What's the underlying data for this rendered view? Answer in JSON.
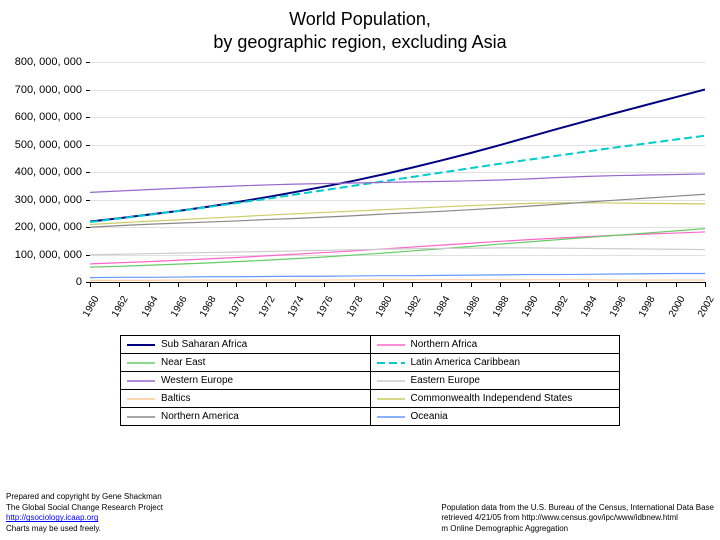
{
  "title_line1": "World Population,",
  "title_line2": "by geographic region, excluding Asia",
  "chart": {
    "type": "line",
    "background_color": "#ffffff",
    "grid_color": "#e0e0e0",
    "y": {
      "min": 0,
      "max": 800000000,
      "step": 100000000,
      "labels": [
        "0",
        "100, 000, 000",
        "200, 000, 000",
        "300, 000, 000",
        "400, 000, 000",
        "500, 000, 000",
        "600, 000, 000",
        "700, 000, 000",
        "800, 000, 000"
      ]
    },
    "x": {
      "years": [
        1960,
        1962,
        1964,
        1966,
        1968,
        1970,
        1972,
        1974,
        1976,
        1978,
        1980,
        1982,
        1984,
        1986,
        1988,
        1990,
        1992,
        1994,
        1996,
        1998,
        2000,
        2002
      ]
    },
    "series": [
      {
        "name": "Sub Saharan Africa",
        "color": "#000080",
        "dash": "none",
        "width": 2,
        "values": [
          220,
          232,
          245,
          258,
          273,
          290,
          308,
          327,
          347,
          368,
          391,
          416,
          442,
          469,
          498,
          528,
          558,
          587,
          616,
          644,
          672,
          700
        ]
      },
      {
        "name": "Northern Africa",
        "color": "#ff66cc",
        "dash": "none",
        "width": 1.2,
        "values": [
          66,
          70,
          74,
          79,
          84,
          89,
          95,
          101,
          107,
          113,
          120,
          127,
          134,
          141,
          148,
          154,
          160,
          165,
          170,
          174,
          178,
          182
        ]
      },
      {
        "name": "Near East",
        "color": "#66cc66",
        "dash": "none",
        "width": 1.2,
        "values": [
          54,
          57,
          61,
          65,
          69,
          74,
          79,
          85,
          91,
          98,
          105,
          113,
          121,
          129,
          138,
          146,
          154,
          162,
          170,
          178,
          186,
          194
        ]
      },
      {
        "name": "Latin America Caribbean",
        "color": "#00cccc",
        "dash": "8,4",
        "width": 2,
        "values": [
          218,
          231,
          244,
          258,
          272,
          287,
          302,
          318,
          334,
          350,
          366,
          382,
          398,
          414,
          430,
          445,
          460,
          475,
          490,
          504,
          518,
          532
        ]
      },
      {
        "name": "Western Europe",
        "color": "#9966cc",
        "dash": "none",
        "width": 1.2,
        "values": [
          326,
          331,
          336,
          341,
          345,
          349,
          353,
          356,
          358,
          360,
          362,
          364,
          366,
          368,
          371,
          375,
          380,
          384,
          387,
          389,
          391,
          393
        ]
      },
      {
        "name": "Eastern Europe",
        "color": "#cccccc",
        "dash": "none",
        "width": 1.2,
        "values": [
          99,
          101,
          103,
          105,
          107,
          109,
          111,
          113,
          115,
          117,
          119,
          121,
          122,
          123,
          124,
          124,
          123,
          122,
          121,
          120,
          119,
          118
        ]
      },
      {
        "name": "Baltics",
        "color": "#ffcc99",
        "dash": "none",
        "width": 1.2,
        "values": [
          6,
          6,
          6,
          7,
          7,
          7,
          7,
          7,
          7,
          8,
          8,
          8,
          8,
          8,
          8,
          8,
          8,
          8,
          7,
          7,
          7,
          7
        ]
      },
      {
        "name": "Commonwealth Independend States",
        "color": "#cccc66",
        "dash": "none",
        "width": 1.2,
        "values": [
          209,
          215,
          221,
          226,
          232,
          237,
          243,
          248,
          253,
          258,
          263,
          268,
          273,
          278,
          282,
          286,
          288,
          288,
          287,
          286,
          285,
          284
        ]
      },
      {
        "name": "Northern America",
        "color": "#888888",
        "dash": "none",
        "width": 1.2,
        "values": [
          199,
          205,
          210,
          214,
          218,
          222,
          227,
          231,
          236,
          241,
          247,
          252,
          257,
          263,
          269,
          276,
          283,
          291,
          298,
          305,
          312,
          319
        ]
      },
      {
        "name": "Oceania",
        "color": "#6699ff",
        "dash": "none",
        "width": 1.2,
        "values": [
          16,
          17,
          17,
          18,
          19,
          19,
          20,
          21,
          21,
          22,
          23,
          23,
          24,
          25,
          26,
          27,
          27,
          28,
          29,
          30,
          31,
          31
        ]
      }
    ]
  },
  "legend_rows": [
    [
      "Sub Saharan Africa",
      "Northern Africa"
    ],
    [
      "Near East",
      "Latin America Caribbean"
    ],
    [
      "Western Europe",
      "Eastern Europe"
    ],
    [
      "Baltics",
      "Commonwealth Independend States"
    ],
    [
      "Northern America",
      "Oceania"
    ]
  ],
  "footer_left": {
    "line1": "Prepared and copyright by Gene Shackman",
    "line2": "The Global Social Change Research Project",
    "link_text": "http://gsociology.icaap.org",
    "line4": "Charts may be used freely."
  },
  "footer_right": {
    "line1": "Population data from the U.S. Bureau of the Census, International Data Base",
    "line2": "retrieved 4/21/05 from http://www.census.gov/ipc/www/idbnew.html",
    "line3": "m Online Demographic Aggregation"
  }
}
